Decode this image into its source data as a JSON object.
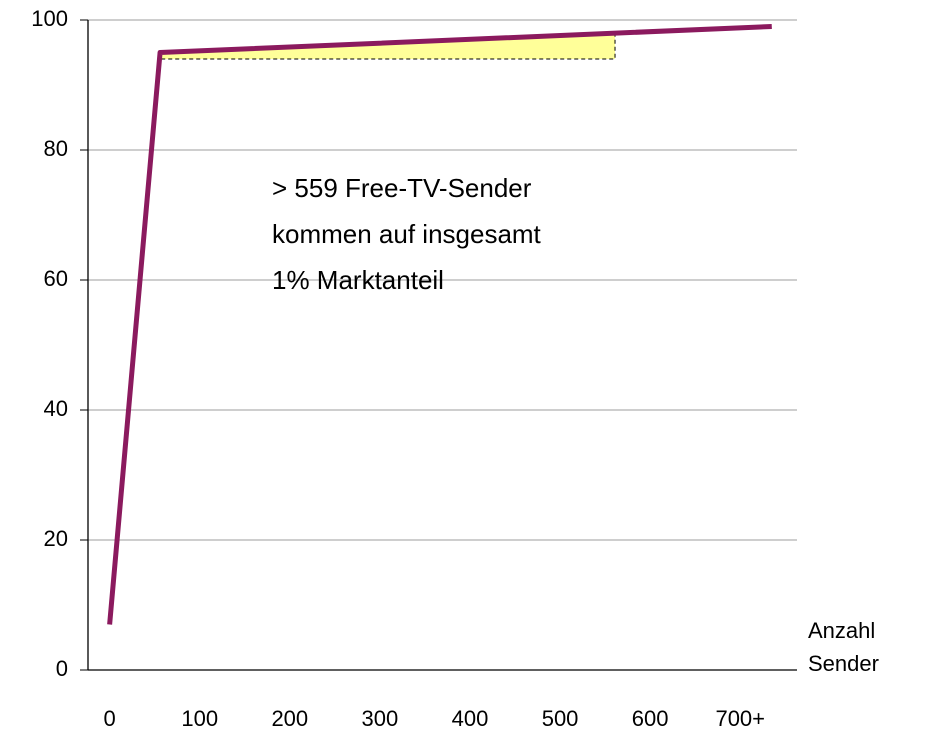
{
  "chart_data": {
    "type": "line",
    "x": [
      0,
      56,
      735
    ],
    "series": [
      {
        "values": [
          7,
          95,
          99
        ],
        "color": "#8b1a5e"
      }
    ],
    "xlim": [
      -24,
      763
    ],
    "xticks": [
      0,
      100,
      200,
      300,
      400,
      500,
      600,
      {
        "value": 700,
        "label": "700+"
      }
    ],
    "ylim": [
      0,
      100
    ],
    "yticks": [
      0,
      20,
      40,
      60,
      80,
      100
    ],
    "grid": true,
    "highlight": {
      "x": [
        56,
        561
      ],
      "y": 94,
      "color": "#ffff99"
    },
    "annotation": [
      "> 559 Free-TV-Sender",
      "kommen auf insgesamt",
      "1% Marktanteil"
    ],
    "xlabel": [
      "Anzahl",
      "Sender"
    ]
  }
}
